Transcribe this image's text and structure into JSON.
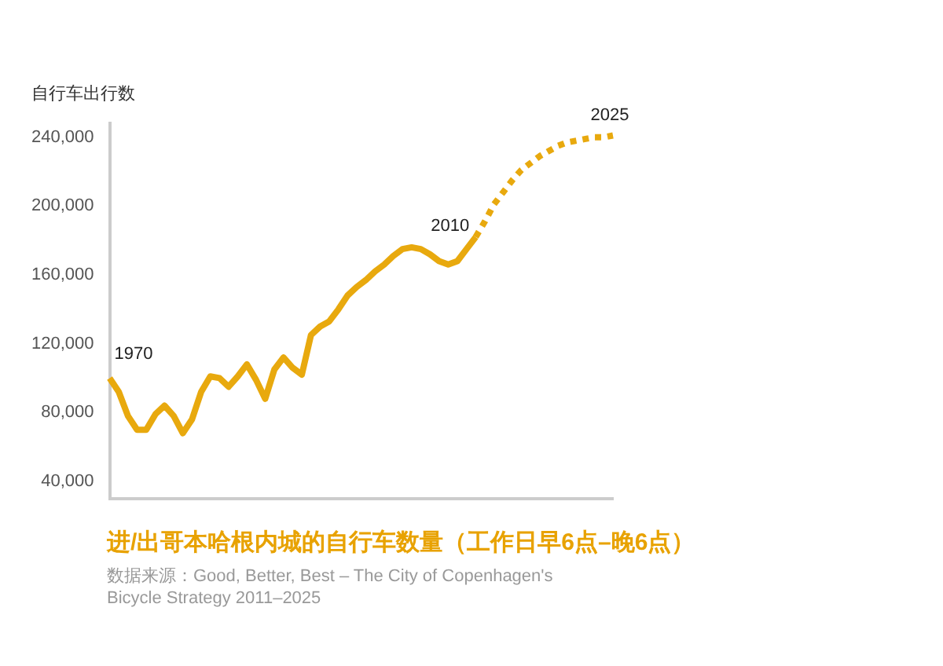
{
  "chart_data": {
    "type": "line",
    "title": "进/出哥本哈根内城的自行车数量（工作日早6点–晚6点）",
    "ylabel": "自行车出行数",
    "categories": [
      null,
      null,
      null,
      null,
      null,
      null,
      null,
      null,
      null,
      null,
      null,
      null,
      null,
      null,
      null,
      null,
      null,
      null,
      null,
      null,
      null,
      null,
      null,
      null,
      null,
      null,
      null,
      null,
      null,
      null,
      null,
      null,
      null,
      null,
      null,
      null,
      null,
      null,
      null,
      null,
      null,
      null,
      null,
      null,
      null,
      null,
      null,
      null,
      null,
      null,
      null,
      null,
      null,
      null,
      null,
      null
    ],
    "ylim": [
      30000,
      248000
    ],
    "yticks": [
      {
        "value": 40000,
        "label": "40,000"
      },
      {
        "value": 80000,
        "label": "80,000"
      },
      {
        "value": 120000,
        "label": "120,000"
      },
      {
        "value": 160000,
        "label": "160,000"
      },
      {
        "value": 200000,
        "label": "200,000"
      },
      {
        "value": 240000,
        "label": "240,000"
      }
    ],
    "tick_labels": "y",
    "grid": false,
    "legend": false,
    "marker": "none",
    "series": [
      {
        "color": "#e8a90e",
        "line_style": "solid",
        "values": [
          100000,
          92000,
          78000,
          70000,
          70000,
          79000,
          84000,
          78000,
          68000,
          76000,
          92000,
          101000,
          100000,
          95000,
          101000,
          108000,
          99000,
          88000,
          105000,
          112000,
          106000,
          102000,
          125000,
          130000,
          133000,
          140000,
          148000,
          153000,
          157000,
          162000,
          166000,
          171000,
          175000,
          176000,
          175000,
          172000,
          168000,
          166000,
          168000,
          175000,
          182000,
          null,
          null,
          null,
          null,
          null,
          null,
          null,
          null,
          null,
          null,
          null,
          null,
          null,
          null,
          null
        ]
      },
      {
        "color": "#e8a90e",
        "line_style": "dotted",
        "values": [
          null,
          null,
          null,
          null,
          null,
          null,
          null,
          null,
          null,
          null,
          null,
          null,
          null,
          null,
          null,
          null,
          null,
          null,
          null,
          null,
          null,
          null,
          null,
          null,
          null,
          null,
          null,
          null,
          null,
          null,
          null,
          null,
          null,
          null,
          null,
          null,
          null,
          null,
          null,
          null,
          182000,
          191000,
          201000,
          208000,
          215000,
          221000,
          225000,
          229000,
          232000,
          235000,
          237000,
          238000,
          239000,
          240000,
          240000,
          241000
        ]
      }
    ],
    "annotations": [
      "1970",
      "2010",
      "2025",
      "数据来源：Good, Better, Best – The City of Copenhagen's Bicycle Strategy 2011–2025"
    ]
  }
}
